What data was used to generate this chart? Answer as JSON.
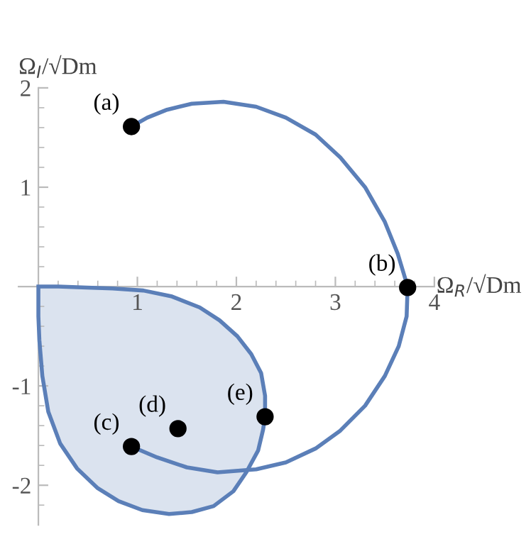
{
  "chart_data": {
    "type": "line",
    "xlabel": "Ω$_{R}$/√Dm",
    "ylabel": "Ω$_{I}$/√Dm",
    "xlim": [
      -0.2,
      4.0
    ],
    "ylim": [
      -2.4,
      2.0
    ],
    "xticks": [
      {
        "value": 0.2,
        "label": null
      },
      {
        "value": 0.4,
        "label": null
      },
      {
        "value": 0.6,
        "label": null
      },
      {
        "value": 0.8,
        "label": null
      },
      1,
      {
        "value": 1.2,
        "label": null
      },
      {
        "value": 1.4,
        "label": null
      },
      {
        "value": 1.6,
        "label": null
      },
      {
        "value": 1.8,
        "label": null
      },
      2,
      {
        "value": 2.2,
        "label": null
      },
      {
        "value": 2.4,
        "label": null
      },
      {
        "value": 2.6,
        "label": null
      },
      {
        "value": 2.8,
        "label": null
      },
      3,
      {
        "value": 3.2,
        "label": null
      },
      {
        "value": 3.4,
        "label": null
      },
      {
        "value": 3.6,
        "label": null
      },
      {
        "value": 3.8,
        "label": null
      },
      4
    ],
    "yticks": [
      {
        "value": -2.2,
        "label": null
      },
      -2,
      {
        "value": -1.8,
        "label": null
      },
      {
        "value": -1.6,
        "label": null
      },
      {
        "value": -1.4,
        "label": null
      },
      {
        "value": -1.2,
        "label": null
      },
      -1,
      {
        "value": -0.8,
        "label": null
      },
      {
        "value": -0.6,
        "label": null
      },
      {
        "value": -0.4,
        "label": null
      },
      {
        "value": -0.2,
        "label": null
      },
      {
        "value": 0.2,
        "label": null
      },
      {
        "value": 0.4,
        "label": null
      },
      {
        "value": 0.6,
        "label": null
      },
      {
        "value": 0.8,
        "label": null
      },
      1,
      {
        "value": 1.2,
        "label": null
      },
      {
        "value": 1.4,
        "label": null
      },
      {
        "value": 1.6,
        "label": null
      },
      {
        "value": 1.8,
        "label": null
      },
      2
    ],
    "grid": false,
    "series": [
      {
        "type": "area",
        "color": "#5b7fb8",
        "x": [
          0,
          0,
          0.01,
          0.04,
          0.1,
          0.22,
          0.39,
          0.6,
          0.81,
          1.05,
          1.32,
          1.55,
          1.77,
          1.97,
          2.1,
          2.22,
          2.27,
          2.29,
          2.29,
          2.25,
          2.15,
          2.01,
          1.83,
          1.63,
          1.35,
          1.06,
          0.75,
          0.49,
          0.2,
          0
        ],
        "values": [
          0,
          -0.3,
          -0.54,
          -0.9,
          -1.26,
          -1.58,
          -1.83,
          -2.03,
          -2.16,
          -2.25,
          -2.29,
          -2.27,
          -2.21,
          -2.06,
          -1.87,
          -1.65,
          -1.44,
          -1.31,
          -1.1,
          -0.87,
          -0.68,
          -0.5,
          -0.34,
          -0.21,
          -0.1,
          -0.04,
          -0.02,
          -0.01,
          0,
          0
        ]
      },
      {
        "color": "#5b7fb8",
        "x": [
          0.94,
          1.1,
          1.3,
          1.55,
          1.87,
          2.2,
          2.5,
          2.8,
          3.05,
          3.3,
          3.5,
          3.63,
          3.73,
          3.72,
          3.64,
          3.5,
          3.3,
          3.05,
          2.8,
          2.5,
          2.2,
          1.81,
          1.5,
          1.2,
          0.94
        ],
        "values": [
          1.61,
          1.7,
          1.78,
          1.84,
          1.86,
          1.81,
          1.7,
          1.53,
          1.3,
          1.0,
          0.65,
          0.33,
          0,
          -0.3,
          -0.6,
          -0.9,
          -1.2,
          -1.45,
          -1.63,
          -1.77,
          -1.84,
          -1.87,
          -1.82,
          -1.72,
          -1.61
        ]
      },
      {
        "type": "scatter",
        "color": "#000000",
        "x": [
          0.94,
          3.73,
          0.94,
          1.41,
          2.29
        ],
        "values": [
          1.61,
          -0.01,
          -1.61,
          -1.43,
          -1.31
        ]
      }
    ],
    "annotations": [
      {
        "text": "(a)",
        "x": 0.94,
        "y": 1.61
      },
      {
        "text": "(b)",
        "x": 3.73,
        "y": -0.01
      },
      {
        "text": "(c)",
        "x": 0.94,
        "y": -1.61
      },
      {
        "text": "(d)",
        "x": 1.41,
        "y": -1.43
      },
      {
        "text": "(e)",
        "x": 2.29,
        "y": -1.31
      }
    ]
  }
}
